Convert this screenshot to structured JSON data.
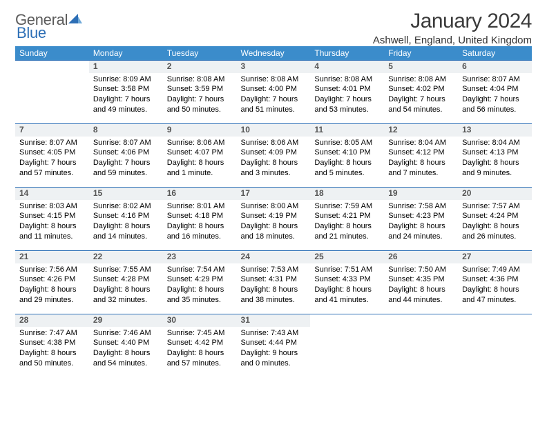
{
  "colors": {
    "header_bg": "#3b8ccb",
    "header_text": "#ffffff",
    "daynum_bg": "#eef1f3",
    "daynum_border": "#2d6fb6",
    "body_text": "#000000",
    "title_text": "#3b3b3b",
    "logo_gray": "#5b5b5b",
    "logo_blue": "#2d6fb6"
  },
  "logo": {
    "part1": "General",
    "part2": "Blue"
  },
  "title": "January 2024",
  "location": "Ashwell, England, United Kingdom",
  "day_headers": [
    "Sunday",
    "Monday",
    "Tuesday",
    "Wednesday",
    "Thursday",
    "Friday",
    "Saturday"
  ],
  "weeks": [
    {
      "nums": [
        "",
        "1",
        "2",
        "3",
        "4",
        "5",
        "6"
      ],
      "cells": [
        {
          "empty": true
        },
        {
          "sunrise": "Sunrise: 8:09 AM",
          "sunset": "Sunset: 3:58 PM",
          "dl1": "Daylight: 7 hours",
          "dl2": "and 49 minutes."
        },
        {
          "sunrise": "Sunrise: 8:08 AM",
          "sunset": "Sunset: 3:59 PM",
          "dl1": "Daylight: 7 hours",
          "dl2": "and 50 minutes."
        },
        {
          "sunrise": "Sunrise: 8:08 AM",
          "sunset": "Sunset: 4:00 PM",
          "dl1": "Daylight: 7 hours",
          "dl2": "and 51 minutes."
        },
        {
          "sunrise": "Sunrise: 8:08 AM",
          "sunset": "Sunset: 4:01 PM",
          "dl1": "Daylight: 7 hours",
          "dl2": "and 53 minutes."
        },
        {
          "sunrise": "Sunrise: 8:08 AM",
          "sunset": "Sunset: 4:02 PM",
          "dl1": "Daylight: 7 hours",
          "dl2": "and 54 minutes."
        },
        {
          "sunrise": "Sunrise: 8:07 AM",
          "sunset": "Sunset: 4:04 PM",
          "dl1": "Daylight: 7 hours",
          "dl2": "and 56 minutes."
        }
      ]
    },
    {
      "nums": [
        "7",
        "8",
        "9",
        "10",
        "11",
        "12",
        "13"
      ],
      "cells": [
        {
          "sunrise": "Sunrise: 8:07 AM",
          "sunset": "Sunset: 4:05 PM",
          "dl1": "Daylight: 7 hours",
          "dl2": "and 57 minutes."
        },
        {
          "sunrise": "Sunrise: 8:07 AM",
          "sunset": "Sunset: 4:06 PM",
          "dl1": "Daylight: 7 hours",
          "dl2": "and 59 minutes."
        },
        {
          "sunrise": "Sunrise: 8:06 AM",
          "sunset": "Sunset: 4:07 PM",
          "dl1": "Daylight: 8 hours",
          "dl2": "and 1 minute."
        },
        {
          "sunrise": "Sunrise: 8:06 AM",
          "sunset": "Sunset: 4:09 PM",
          "dl1": "Daylight: 8 hours",
          "dl2": "and 3 minutes."
        },
        {
          "sunrise": "Sunrise: 8:05 AM",
          "sunset": "Sunset: 4:10 PM",
          "dl1": "Daylight: 8 hours",
          "dl2": "and 5 minutes."
        },
        {
          "sunrise": "Sunrise: 8:04 AM",
          "sunset": "Sunset: 4:12 PM",
          "dl1": "Daylight: 8 hours",
          "dl2": "and 7 minutes."
        },
        {
          "sunrise": "Sunrise: 8:04 AM",
          "sunset": "Sunset: 4:13 PM",
          "dl1": "Daylight: 8 hours",
          "dl2": "and 9 minutes."
        }
      ]
    },
    {
      "nums": [
        "14",
        "15",
        "16",
        "17",
        "18",
        "19",
        "20"
      ],
      "cells": [
        {
          "sunrise": "Sunrise: 8:03 AM",
          "sunset": "Sunset: 4:15 PM",
          "dl1": "Daylight: 8 hours",
          "dl2": "and 11 minutes."
        },
        {
          "sunrise": "Sunrise: 8:02 AM",
          "sunset": "Sunset: 4:16 PM",
          "dl1": "Daylight: 8 hours",
          "dl2": "and 14 minutes."
        },
        {
          "sunrise": "Sunrise: 8:01 AM",
          "sunset": "Sunset: 4:18 PM",
          "dl1": "Daylight: 8 hours",
          "dl2": "and 16 minutes."
        },
        {
          "sunrise": "Sunrise: 8:00 AM",
          "sunset": "Sunset: 4:19 PM",
          "dl1": "Daylight: 8 hours",
          "dl2": "and 18 minutes."
        },
        {
          "sunrise": "Sunrise: 7:59 AM",
          "sunset": "Sunset: 4:21 PM",
          "dl1": "Daylight: 8 hours",
          "dl2": "and 21 minutes."
        },
        {
          "sunrise": "Sunrise: 7:58 AM",
          "sunset": "Sunset: 4:23 PM",
          "dl1": "Daylight: 8 hours",
          "dl2": "and 24 minutes."
        },
        {
          "sunrise": "Sunrise: 7:57 AM",
          "sunset": "Sunset: 4:24 PM",
          "dl1": "Daylight: 8 hours",
          "dl2": "and 26 minutes."
        }
      ]
    },
    {
      "nums": [
        "21",
        "22",
        "23",
        "24",
        "25",
        "26",
        "27"
      ],
      "cells": [
        {
          "sunrise": "Sunrise: 7:56 AM",
          "sunset": "Sunset: 4:26 PM",
          "dl1": "Daylight: 8 hours",
          "dl2": "and 29 minutes."
        },
        {
          "sunrise": "Sunrise: 7:55 AM",
          "sunset": "Sunset: 4:28 PM",
          "dl1": "Daylight: 8 hours",
          "dl2": "and 32 minutes."
        },
        {
          "sunrise": "Sunrise: 7:54 AM",
          "sunset": "Sunset: 4:29 PM",
          "dl1": "Daylight: 8 hours",
          "dl2": "and 35 minutes."
        },
        {
          "sunrise": "Sunrise: 7:53 AM",
          "sunset": "Sunset: 4:31 PM",
          "dl1": "Daylight: 8 hours",
          "dl2": "and 38 minutes."
        },
        {
          "sunrise": "Sunrise: 7:51 AM",
          "sunset": "Sunset: 4:33 PM",
          "dl1": "Daylight: 8 hours",
          "dl2": "and 41 minutes."
        },
        {
          "sunrise": "Sunrise: 7:50 AM",
          "sunset": "Sunset: 4:35 PM",
          "dl1": "Daylight: 8 hours",
          "dl2": "and 44 minutes."
        },
        {
          "sunrise": "Sunrise: 7:49 AM",
          "sunset": "Sunset: 4:36 PM",
          "dl1": "Daylight: 8 hours",
          "dl2": "and 47 minutes."
        }
      ]
    },
    {
      "nums": [
        "28",
        "29",
        "30",
        "31",
        "",
        "",
        ""
      ],
      "cells": [
        {
          "sunrise": "Sunrise: 7:47 AM",
          "sunset": "Sunset: 4:38 PM",
          "dl1": "Daylight: 8 hours",
          "dl2": "and 50 minutes."
        },
        {
          "sunrise": "Sunrise: 7:46 AM",
          "sunset": "Sunset: 4:40 PM",
          "dl1": "Daylight: 8 hours",
          "dl2": "and 54 minutes."
        },
        {
          "sunrise": "Sunrise: 7:45 AM",
          "sunset": "Sunset: 4:42 PM",
          "dl1": "Daylight: 8 hours",
          "dl2": "and 57 minutes."
        },
        {
          "sunrise": "Sunrise: 7:43 AM",
          "sunset": "Sunset: 4:44 PM",
          "dl1": "Daylight: 9 hours",
          "dl2": "and 0 minutes."
        },
        {
          "empty": true
        },
        {
          "empty": true
        },
        {
          "empty": true
        }
      ]
    }
  ]
}
